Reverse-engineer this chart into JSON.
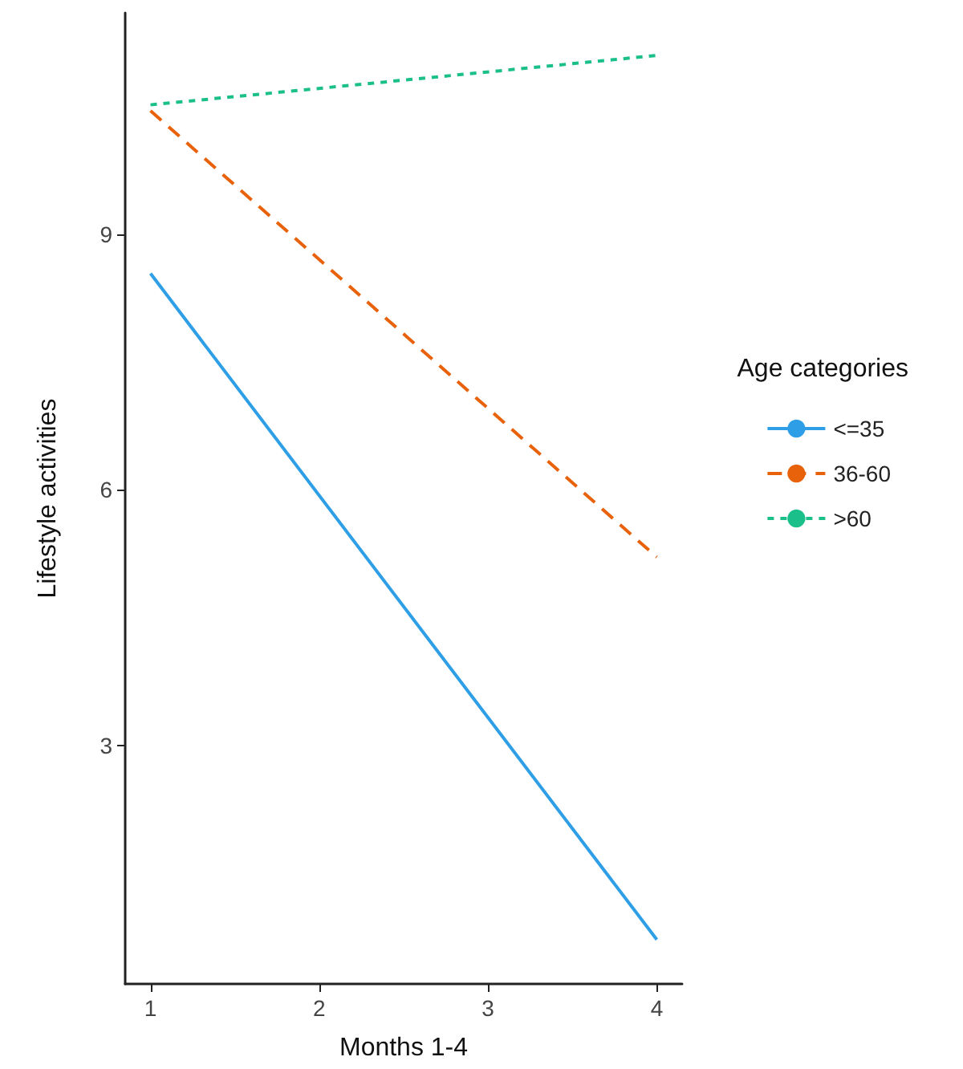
{
  "chart_data": {
    "type": "line",
    "xlabel": "Months 1-4",
    "ylabel": "Lifestyle activities",
    "legend_title": "Age categories",
    "legend": "right",
    "grid": false,
    "marker": "none",
    "x": [
      1,
      4
    ],
    "xlim": [
      0.85,
      4.15
    ],
    "xticks": [
      1,
      2,
      3,
      4
    ],
    "ylim": [
      0.2,
      11.6
    ],
    "yticks": [
      3,
      6,
      9
    ],
    "series": [
      {
        "name": "<=35",
        "color": "#2e9fe6",
        "values": [
          8.54,
          0.72
        ],
        "line_style": "solid"
      },
      {
        "name": "36-60",
        "color": "#e8620c",
        "values": [
          10.45,
          5.21
        ],
        "line_style": "dashed"
      },
      {
        "name": ">60",
        "color": "#1bbf8a",
        "values": [
          10.52,
          11.1
        ],
        "line_style": "dotted"
      }
    ]
  }
}
